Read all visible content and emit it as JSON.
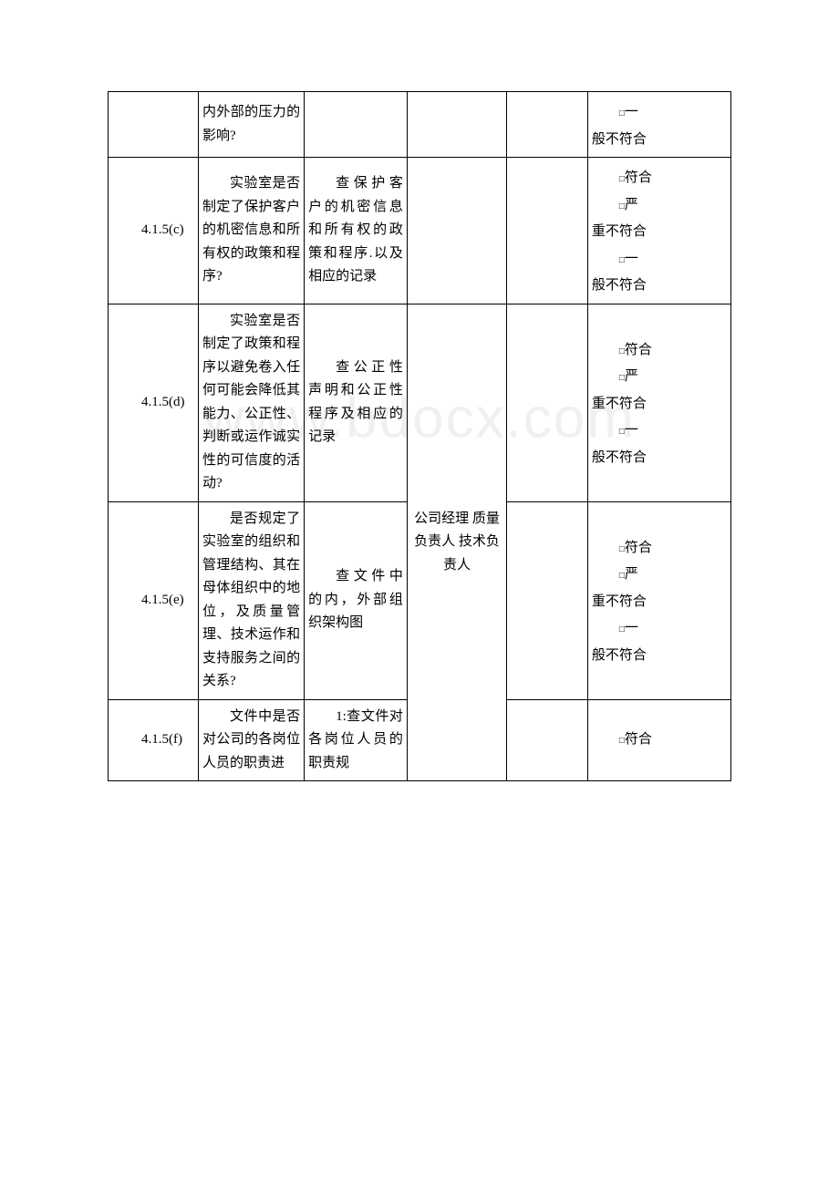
{
  "watermark": "www.bdocx.com",
  "checkbox_glyph": "□",
  "result_options": {
    "conform": "符合",
    "major_nc": "严重不符合",
    "minor_nc": "般不符合",
    "minor_nc_prefix": "一"
  },
  "shared_person": "公司经理 质量负责人 技术负责人",
  "rows": [
    {
      "code": "",
      "question": "内外部的压力的影响?",
      "question_indent": false,
      "method": "",
      "method_indent": false,
      "show_person": false,
      "results": [
        "minor"
      ]
    },
    {
      "code": "4.1.5(c)",
      "question": "实验室是否制定了保护客户的机密信息和所 有权的政策和程序?",
      "question_indent": true,
      "method": "查保护客户的机密信息和所有权的政策和程序.以及相应的记录",
      "method_indent": true,
      "show_person": false,
      "results": [
        "conform",
        "major",
        "minor"
      ]
    },
    {
      "code": "4.1.5(d)",
      "question": "实验室是否制定了政策和程序以避免卷入任 何可能会降低其能力、公正性、判断或运作诚实性的可信度的活动?",
      "question_indent": true,
      "method": "查公正性声明和公正性程序及相应的记录",
      "method_indent": true,
      "show_person": true,
      "results": [
        "conform",
        "major",
        "minor"
      ]
    },
    {
      "code": "4.1.5(e)",
      "question": "是否规定了实验室的组织和管理结构、其在母体组织中的地位，及质量管理、技术运作和支持服务之间的关系?",
      "question_indent": true,
      "method": "查文件中的内，外部组织架构图",
      "method_indent": true,
      "show_person": false,
      "results": [
        "conform",
        "major",
        "minor"
      ]
    },
    {
      "code": "4.1.5(f)",
      "question": "文件中是否对公司的各岗位人员的职责进",
      "question_indent": true,
      "method": "1:查文件对各岗位人员的职责规",
      "method_indent": true,
      "show_person": false,
      "results": [
        "conform"
      ]
    }
  ]
}
